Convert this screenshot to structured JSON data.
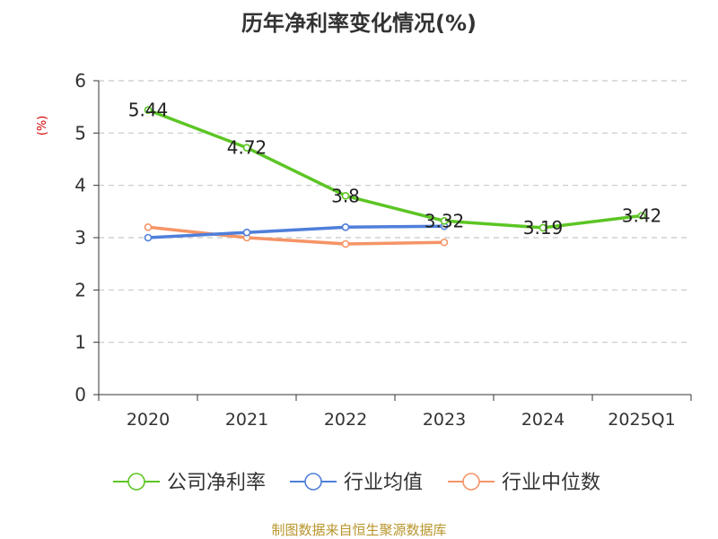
{
  "chart_data": {
    "type": "line",
    "title": "历年净利率变化情况(%)",
    "ylabel": "(%)",
    "xlabel": "",
    "categories": [
      "2020",
      "2021",
      "2022",
      "2023",
      "2024",
      "2025Q1"
    ],
    "ylim": [
      0,
      6
    ],
    "yticks": [
      0,
      1,
      2,
      3,
      4,
      5,
      6
    ],
    "grid": true,
    "legend_position": "bottom",
    "series": [
      {
        "name": "公司净利率",
        "color": "#5cc524",
        "values": [
          5.44,
          4.72,
          3.8,
          3.32,
          3.19,
          3.42
        ],
        "show_labels": true
      },
      {
        "name": "行业均值",
        "color": "#4f7fdb",
        "values": [
          3.0,
          3.1,
          3.2,
          3.22,
          null,
          null
        ],
        "show_labels": false
      },
      {
        "name": "行业中位数",
        "color": "#f59466",
        "values": [
          3.2,
          3.0,
          2.88,
          2.91,
          null,
          null
        ],
        "show_labels": false
      }
    ]
  },
  "source_text": "制图数据来自恒生聚源数据库"
}
